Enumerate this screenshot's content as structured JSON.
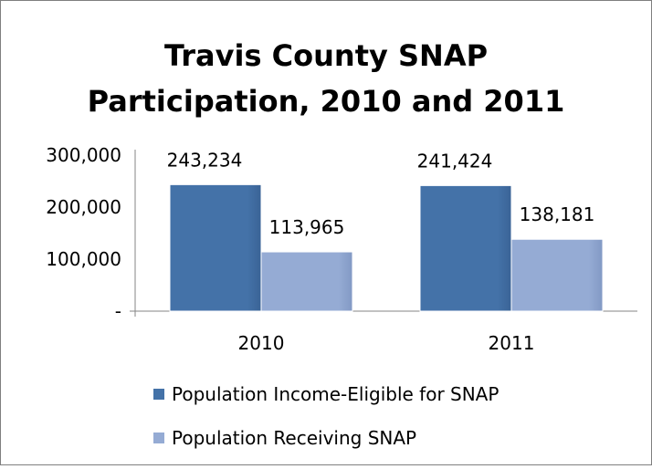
{
  "chart_data": {
    "type": "bar",
    "title": "Travis County SNAP Participation, 2010 and 2011",
    "title_lines": [
      "Travis County SNAP",
      "Participation, 2010 and 2011"
    ],
    "categories": [
      "2010",
      "2011"
    ],
    "series": [
      {
        "name": "Population Income-Eligible for SNAP",
        "values": [
          243234,
          241424
        ],
        "labels": [
          "243,234",
          "241,424"
        ],
        "color": "#4472a8"
      },
      {
        "name": "Population Receiving SNAP",
        "values": [
          113965,
          138181
        ],
        "labels": [
          "113,965",
          "138,181"
        ],
        "color": "#95abd4"
      }
    ],
    "ylim": [
      0,
      300000
    ],
    "yticks": [
      {
        "value": 0,
        "label": "-"
      },
      {
        "value": 100000,
        "label": "100,000"
      },
      {
        "value": 200000,
        "label": "200,000"
      },
      {
        "value": 300000,
        "label": "300,000"
      }
    ],
    "xlabel": "",
    "ylabel": "",
    "grid": false,
    "legend_position": "bottom"
  }
}
